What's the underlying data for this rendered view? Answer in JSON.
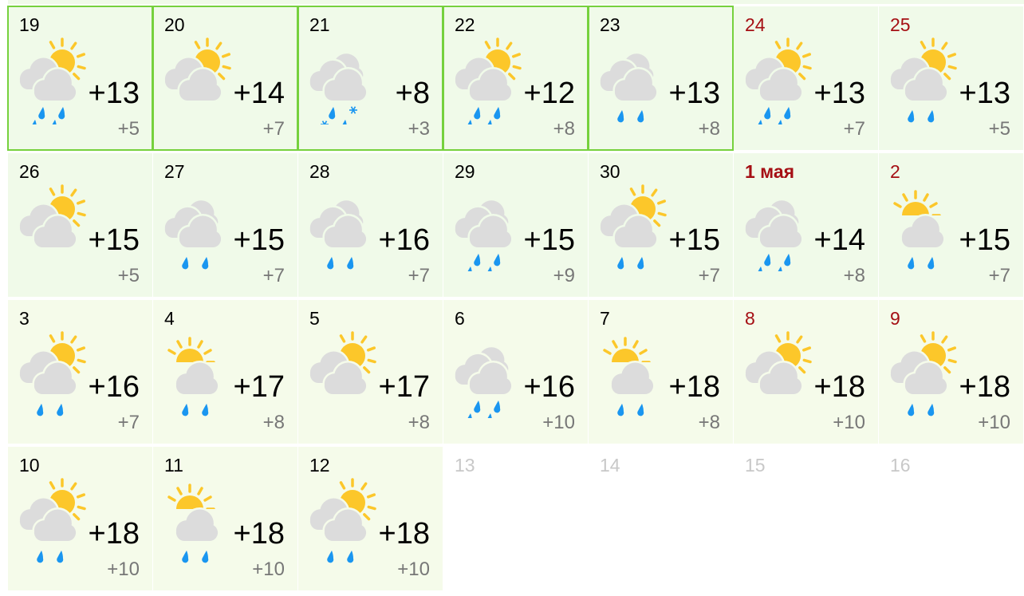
{
  "colors": {
    "accent_border": "#76d13d",
    "weekend": "#a50f14",
    "drop": "#1a96f0",
    "sun": "#fcc72a",
    "cloud": "#dcdcdc"
  },
  "days": [
    {
      "label": "19",
      "day": "+13",
      "night": "+5",
      "sky": "sun-cloud",
      "precip": "rain",
      "current": true
    },
    {
      "label": "20",
      "day": "+14",
      "night": "+7",
      "sky": "sun-cloud",
      "precip": "none",
      "current": true
    },
    {
      "label": "21",
      "day": "+8",
      "night": "+3",
      "sky": "overcast",
      "precip": "rain-snow",
      "current": true
    },
    {
      "label": "22",
      "day": "+12",
      "night": "+8",
      "sky": "sun-cloud",
      "precip": "rain",
      "current": true
    },
    {
      "label": "23",
      "day": "+13",
      "night": "+8",
      "sky": "overcast",
      "precip": "light-rain",
      "current": true
    },
    {
      "label": "24",
      "day": "+13",
      "night": "+7",
      "sky": "sun-cloud",
      "precip": "rain",
      "weekend": true
    },
    {
      "label": "25",
      "day": "+13",
      "night": "+5",
      "sky": "sun-cloud",
      "precip": "light-rain",
      "weekend": true
    },
    {
      "label": "26",
      "day": "+15",
      "night": "+5",
      "sky": "sun-cloud",
      "precip": "none"
    },
    {
      "label": "27",
      "day": "+15",
      "night": "+7",
      "sky": "overcast",
      "precip": "light-rain"
    },
    {
      "label": "28",
      "day": "+16",
      "night": "+7",
      "sky": "overcast",
      "precip": "light-rain"
    },
    {
      "label": "29",
      "day": "+15",
      "night": "+9",
      "sky": "overcast",
      "precip": "rain"
    },
    {
      "label": "30",
      "day": "+15",
      "night": "+7",
      "sky": "sun-cloud",
      "precip": "light-rain"
    },
    {
      "label": "1 мая",
      "day": "+14",
      "night": "+8",
      "sky": "overcast",
      "precip": "rain",
      "weekend": true,
      "bold": true
    },
    {
      "label": "2",
      "day": "+15",
      "night": "+7",
      "sky": "sun-small-cloud",
      "precip": "light-rain",
      "weekend": true
    },
    {
      "label": "3",
      "day": "+16",
      "night": "+7",
      "sky": "sun-cloud",
      "precip": "light-rain"
    },
    {
      "label": "4",
      "day": "+17",
      "night": "+8",
      "sky": "sun-small-cloud",
      "precip": "light-rain"
    },
    {
      "label": "5",
      "day": "+17",
      "night": "+8",
      "sky": "sun-cloud",
      "precip": "none"
    },
    {
      "label": "6",
      "day": "+16",
      "night": "+10",
      "sky": "overcast",
      "precip": "rain"
    },
    {
      "label": "7",
      "day": "+18",
      "night": "+8",
      "sky": "sun-small-cloud",
      "precip": "light-rain"
    },
    {
      "label": "8",
      "day": "+18",
      "night": "+10",
      "sky": "sun-cloud",
      "precip": "none",
      "weekend": true
    },
    {
      "label": "9",
      "day": "+18",
      "night": "+10",
      "sky": "sun-cloud",
      "precip": "light-rain",
      "weekend": true
    },
    {
      "label": "10",
      "day": "+18",
      "night": "+10",
      "sky": "sun-cloud",
      "precip": "light-rain"
    },
    {
      "label": "11",
      "day": "+18",
      "night": "+10",
      "sky": "sun-small-cloud",
      "precip": "light-rain"
    },
    {
      "label": "12",
      "day": "+18",
      "night": "+10",
      "sky": "sun-cloud",
      "precip": "light-rain"
    }
  ],
  "future_days": [
    "13",
    "14",
    "15",
    "16"
  ]
}
